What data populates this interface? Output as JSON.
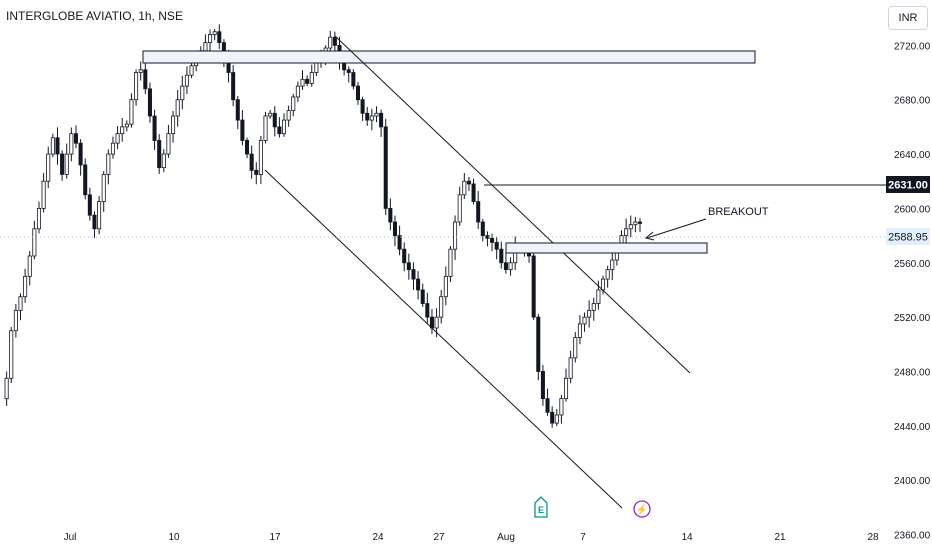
{
  "header": {
    "symbol": "INTERGLOBE AVIATIO, 1h, NSE",
    "currency": "INR"
  },
  "chart_data": {
    "type": "candlestick",
    "y_ticks": [
      "2720.00",
      "2680.00",
      "2640.00",
      "2600.00",
      "2560.00",
      "2520.00",
      "2480.00",
      "2440.00",
      "2400.00",
      "2360.00"
    ],
    "x_ticks": [
      "Jul",
      "10",
      "17",
      "24",
      "27",
      "Aug",
      "7",
      "14",
      "21",
      "28"
    ],
    "ylim": [
      2356,
      2746
    ],
    "price_labels": {
      "level": "2631.00",
      "last": "2588.95"
    },
    "annotations": {
      "breakout": "BREAKOUT",
      "earnings": "E",
      "dividend": "⚡"
    },
    "colors": {
      "candle": "#131722",
      "line": "#131722",
      "box_fill": "#f0f3fa",
      "label_dark": "#131722",
      "label_last_bg": "#e3effd",
      "label_last_fg": "#131722",
      "earnings": "#089981",
      "dividend": "#9c27b0"
    },
    "price_path": [
      2460,
      2475,
      2510,
      2525,
      2535,
      2550,
      2565,
      2585,
      2600,
      2620,
      2640,
      2652,
      2640,
      2625,
      2640,
      2655,
      2648,
      2632,
      2610,
      2595,
      2585,
      2605,
      2625,
      2640,
      2648,
      2655,
      2660,
      2662,
      2680,
      2700,
      2702,
      2688,
      2668,
      2650,
      2630,
      2640,
      2655,
      2668,
      2680,
      2690,
      2698,
      2705,
      2712,
      2716,
      2722,
      2728,
      2730,
      2722,
      2712,
      2700,
      2680,
      2665,
      2650,
      2640,
      2628,
      2625,
      2650,
      2668,
      2670,
      2660,
      2655,
      2665,
      2672,
      2682,
      2690,
      2695,
      2692,
      2700,
      2708,
      2712,
      2718,
      2726,
      2720,
      2708,
      2702,
      2700,
      2690,
      2680,
      2670,
      2665,
      2668,
      2670,
      2660,
      2600,
      2590,
      2580,
      2570,
      2560,
      2555,
      2548,
      2540,
      2530,
      2520,
      2512,
      2520,
      2535,
      2550,
      2570,
      2590,
      2610,
      2620,
      2618,
      2605,
      2590,
      2580,
      2578,
      2575,
      2570,
      2560,
      2555,
      2560,
      2572,
      2570,
      2568,
      2565,
      2520,
      2480,
      2460,
      2450,
      2442,
      2448,
      2460,
      2475,
      2490,
      2505,
      2515,
      2520,
      2525,
      2530,
      2540,
      2548,
      2555,
      2562,
      2570,
      2580,
      2585,
      2588,
      2590,
      2588.95
    ]
  }
}
